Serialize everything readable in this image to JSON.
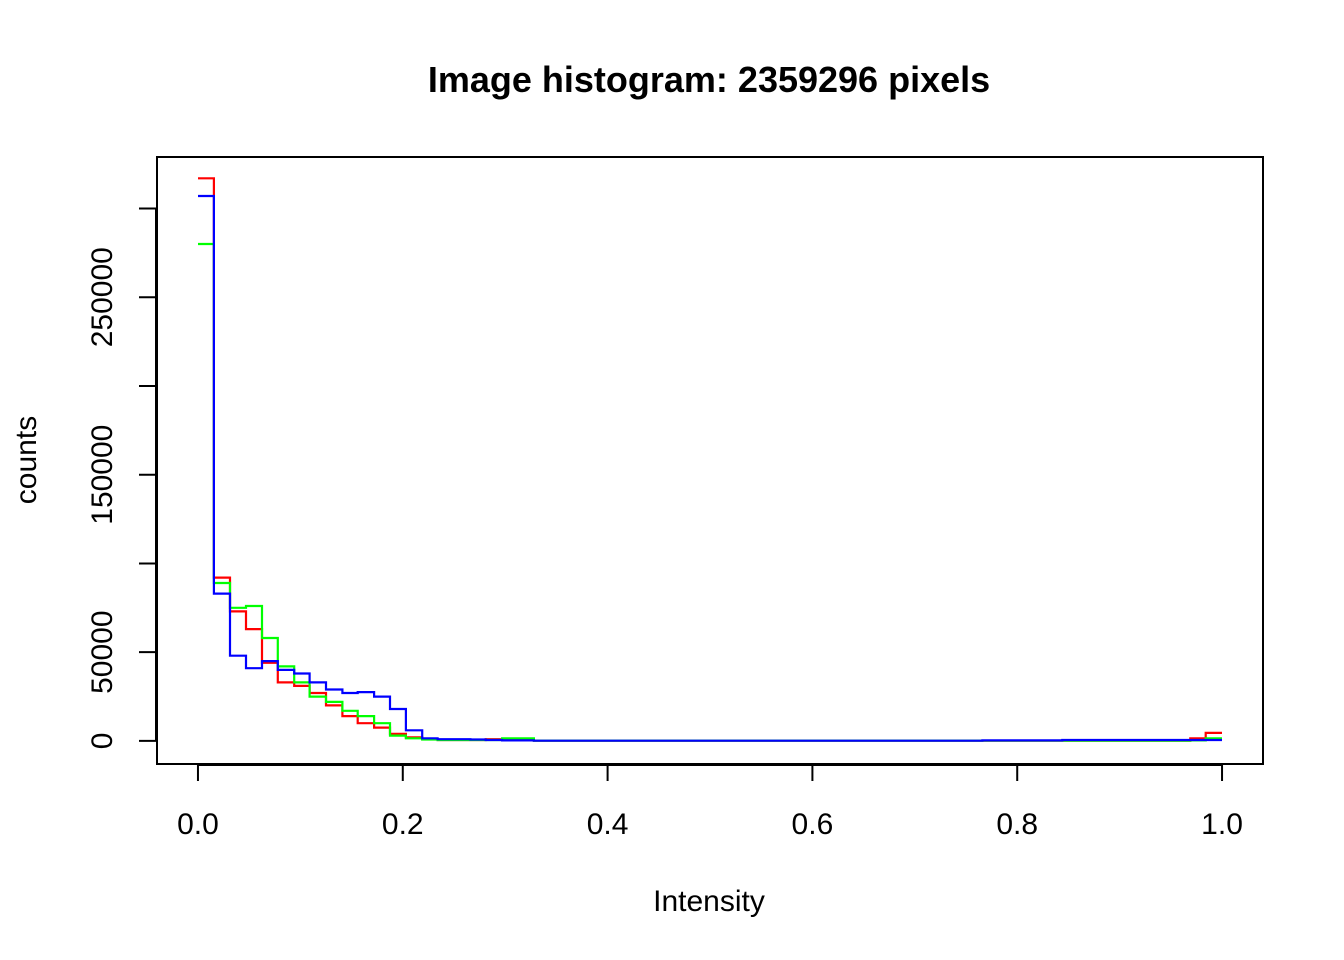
{
  "chart_data": {
    "type": "line",
    "title": "Image histogram: 2359296 pixels",
    "xlabel": "Intensity",
    "ylabel": "counts",
    "xlim": [
      -0.04,
      1.04
    ],
    "ylim": [
      -13000,
      329000
    ],
    "x_ticks": [
      "0.0",
      "0.2",
      "0.4",
      "0.6",
      "0.8",
      "1.0"
    ],
    "x_tick_values": [
      0,
      0.2,
      0.4,
      0.6,
      0.8,
      1.0
    ],
    "y_ticks": [
      "0",
      "50000",
      "150000",
      "250000"
    ],
    "y_tick_values": [
      0,
      50000,
      150000,
      250000
    ],
    "y_tick_marks": [
      0,
      50000,
      100000,
      150000,
      200000,
      250000,
      300000
    ],
    "bin_edges": [
      0,
      0.0156,
      0.03125,
      0.0469,
      0.0625,
      0.078,
      0.094,
      0.109,
      0.125,
      0.141,
      0.156,
      0.172,
      0.1875,
      0.203,
      0.219,
      0.234,
      0.25,
      0.266,
      0.281,
      0.297,
      0.3125,
      0.328,
      0.344,
      0.359,
      0.375,
      0.75,
      0.766,
      0.828,
      0.844,
      0.9375,
      0.953,
      0.969,
      0.984,
      1.0
    ],
    "series": [
      {
        "name": "red",
        "color": "#ff0000",
        "values": [
          317000,
          92000,
          73000,
          63000,
          44000,
          33000,
          31000,
          27000,
          20000,
          14000,
          10000,
          7500,
          4000,
          2000,
          1000,
          500,
          500,
          500,
          1000,
          1000,
          1000,
          200,
          200,
          200,
          200,
          200,
          200,
          200,
          200,
          200,
          200,
          1500,
          4500
        ]
      },
      {
        "name": "green",
        "color": "#00ff00",
        "values": [
          280000,
          89000,
          75000,
          76000,
          58000,
          42000,
          33000,
          25000,
          22000,
          17000,
          14000,
          10000,
          3000,
          1500,
          800,
          500,
          500,
          500,
          500,
          1500,
          1500,
          200,
          200,
          200,
          200,
          200,
          200,
          200,
          200,
          200,
          200,
          300,
          1500
        ]
      },
      {
        "name": "blue",
        "color": "#0000ff",
        "values": [
          307000,
          83000,
          48000,
          41000,
          45000,
          40000,
          38000,
          33000,
          29000,
          27000,
          27500,
          25000,
          18000,
          6000,
          1500,
          1000,
          1000,
          800,
          500,
          300,
          300,
          100,
          100,
          100,
          100,
          100,
          300,
          300,
          500,
          500,
          500,
          500,
          500
        ]
      }
    ]
  }
}
